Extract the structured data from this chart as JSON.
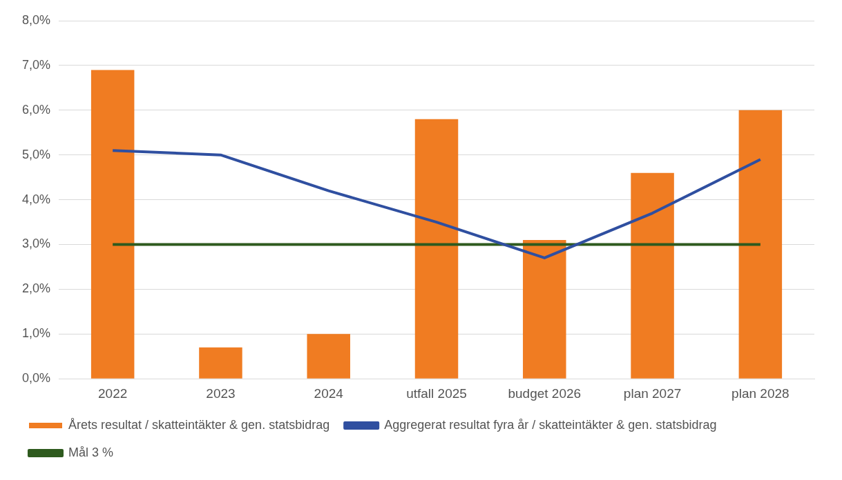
{
  "chart_data": {
    "type": "bar",
    "categories": [
      "2022",
      "2023",
      "2024",
      "utfall 2025",
      "budget 2026",
      "plan 2027",
      "plan 2028"
    ],
    "series": [
      {
        "name": "Årets resultat / skatteintäkter & gen. statsbidrag",
        "color": "#f07c22",
        "values": [
          6.9,
          0.7,
          1.0,
          5.8,
          3.1,
          4.6,
          6.0
        ]
      },
      {
        "name": "Aggregerat resultat fyra år / skatteintäkter & gen. statsbidrag",
        "type": "line",
        "color": "#2f4fa0",
        "values": [
          5.1,
          5.0,
          4.2,
          3.5,
          2.7,
          3.7,
          4.9
        ]
      },
      {
        "name": "Mål 3 %",
        "type": "line",
        "color": "#2e5a1e",
        "values": [
          3,
          3,
          3,
          3,
          3,
          3,
          3
        ]
      }
    ],
    "ylim": [
      0,
      8
    ],
    "yticks": [
      {
        "value": 0,
        "label": "0,0%"
      },
      {
        "value": 1,
        "label": "1,0%"
      },
      {
        "value": 2,
        "label": "2,0%"
      },
      {
        "value": 3,
        "label": "3,0%"
      },
      {
        "value": 4,
        "label": "4,0%"
      },
      {
        "value": 5,
        "label": "5,0%"
      },
      {
        "value": 6,
        "label": "6,0%"
      },
      {
        "value": 7,
        "label": "7,0%"
      },
      {
        "value": 8,
        "label": "8,0%"
      }
    ],
    "grid": "y",
    "legend": "bottom",
    "marker": "none"
  }
}
